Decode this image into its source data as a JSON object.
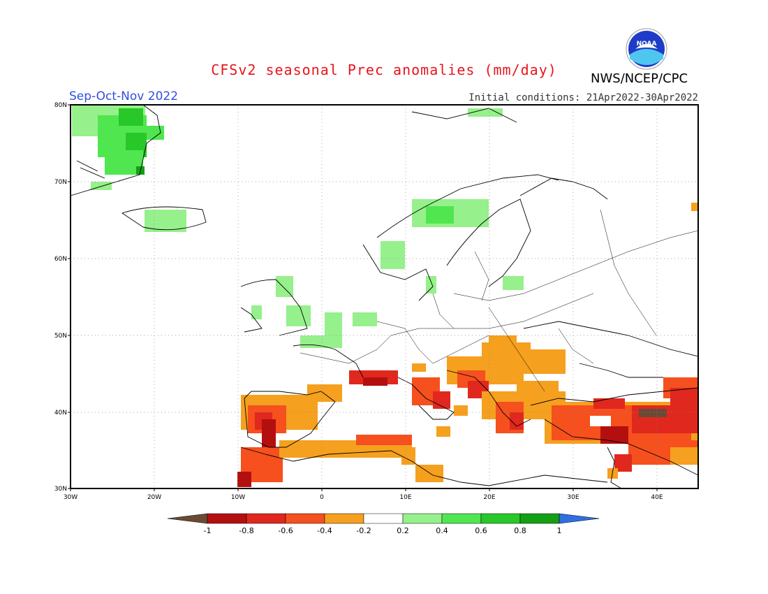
{
  "title": "CFSv2 seasonal Prec anomalies (mm/day)",
  "season": "Sep-Oct-Nov 2022",
  "initial_conditions": "Initial conditions: 21Apr2022-30Apr2022",
  "organization": "NWS/NCEP/CPC",
  "logo_text": "NOAA",
  "map": {
    "lon_range": [
      -30,
      45
    ],
    "lat_range": [
      30,
      80
    ],
    "lat_ticks": [
      "30N",
      "40N",
      "50N",
      "60N",
      "70N",
      "80N"
    ],
    "lon_ticks": [
      "30W",
      "20W",
      "10W",
      "0",
      "10E",
      "20E",
      "30E",
      "40E"
    ]
  },
  "colorbar": {
    "labels": [
      "-1",
      "-0.8",
      "-0.6",
      "-0.4",
      "-0.2",
      "0.2",
      "0.4",
      "0.6",
      "0.8",
      "1"
    ],
    "colors": [
      "#6b4a35",
      "#b40f0f",
      "#e0281e",
      "#f5501e",
      "#f5a01e",
      "#ffffff",
      "#96f08c",
      "#50e650",
      "#28c828",
      "#14a014",
      "#2f6fe0"
    ]
  },
  "colors": {
    "title": "#e8141c",
    "season": "#2f4fe0",
    "light_green": "#96f08c",
    "green": "#50e650",
    "dark_green": "#28c828",
    "orange": "#f5a01e",
    "red_orange": "#f5501e",
    "red": "#e0281e",
    "dark_red": "#b40f0f",
    "brown": "#6b4a35"
  }
}
